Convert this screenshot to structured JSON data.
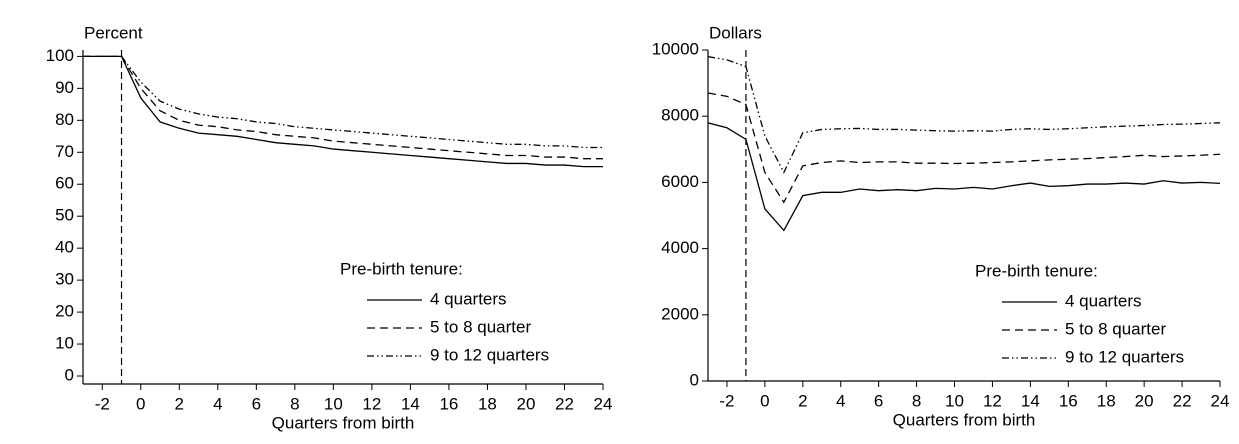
{
  "chart_data": [
    {
      "type": "line",
      "ylabel": "Percent",
      "xlabel": "Quarters from birth",
      "legend_title": "Pre-birth tenure:",
      "x": [
        -3,
        -2,
        -1,
        0,
        1,
        2,
        3,
        4,
        5,
        6,
        7,
        8,
        9,
        10,
        11,
        12,
        13,
        14,
        15,
        16,
        17,
        18,
        19,
        20,
        21,
        22,
        23,
        24
      ],
      "series": [
        {
          "name": "4 quarters",
          "color": "#000000",
          "dash": "none",
          "values": [
            100,
            100,
            100,
            87,
            79.5,
            77.5,
            76,
            75.5,
            75,
            74,
            73,
            72.5,
            72,
            71,
            70.5,
            70,
            69.5,
            69,
            68.5,
            68,
            67.5,
            67,
            66.5,
            66.5,
            66,
            66,
            65.5,
            65.5
          ]
        },
        {
          "name": "5 to 8 quarter",
          "color": "#000000",
          "dash": "8,5",
          "values": [
            100,
            100,
            100,
            90,
            83,
            80,
            78.5,
            78,
            77,
            76.5,
            75.5,
            75,
            74.5,
            73.5,
            73,
            72.5,
            72,
            71.5,
            71,
            70.5,
            70,
            69.5,
            69,
            69,
            68.5,
            68.5,
            68,
            68
          ]
        },
        {
          "name": "9 to 12 quarters",
          "color": "#000000",
          "dash": "7,3,1.5,3,1.5,3",
          "values": [
            100,
            100,
            100,
            92,
            86,
            83.5,
            82,
            81,
            80.5,
            79.5,
            79,
            78,
            77.5,
            77,
            76.5,
            76,
            75.5,
            75,
            74.5,
            74,
            73.5,
            73,
            72.5,
            72.5,
            72,
            72,
            71.5,
            71.5
          ]
        }
      ],
      "vline": -1,
      "xlim": [
        -3,
        24
      ],
      "xticks": [
        -2,
        0,
        2,
        4,
        6,
        8,
        10,
        12,
        14,
        16,
        18,
        20,
        22,
        24
      ],
      "ylim": [
        -2.5,
        102
      ],
      "yticks": [
        0,
        10,
        20,
        30,
        40,
        50,
        60,
        70,
        80,
        90,
        100
      ]
    },
    {
      "type": "line",
      "ylabel": "Dollars",
      "xlabel": "Quarters from birth",
      "legend_title": "Pre-birth tenure:",
      "x": [
        -3,
        -2,
        -1,
        0,
        1,
        2,
        3,
        4,
        5,
        6,
        7,
        8,
        9,
        10,
        11,
        12,
        13,
        14,
        15,
        16,
        17,
        18,
        19,
        20,
        21,
        22,
        23,
        24
      ],
      "series": [
        {
          "name": "4 quarters",
          "color": "#000000",
          "dash": "none",
          "values": [
            7800,
            7650,
            7300,
            5200,
            4550,
            5600,
            5700,
            5700,
            5800,
            5750,
            5780,
            5750,
            5820,
            5800,
            5850,
            5800,
            5900,
            5980,
            5880,
            5900,
            5950,
            5950,
            5980,
            5950,
            6050,
            5980,
            6000,
            5970
          ]
        },
        {
          "name": "5 to 8 quarter",
          "color": "#000000",
          "dash": "8,5",
          "values": [
            8700,
            8600,
            8350,
            6300,
            5400,
            6500,
            6600,
            6650,
            6600,
            6620,
            6620,
            6580,
            6580,
            6570,
            6580,
            6600,
            6620,
            6650,
            6680,
            6700,
            6720,
            6750,
            6780,
            6820,
            6780,
            6800,
            6820,
            6850
          ]
        },
        {
          "name": "9 to 12 quarters",
          "color": "#000000",
          "dash": "7,3,1.5,3,1.5,3",
          "values": [
            9800,
            9700,
            9500,
            7400,
            6300,
            7500,
            7600,
            7620,
            7630,
            7600,
            7600,
            7580,
            7560,
            7550,
            7560,
            7550,
            7600,
            7620,
            7600,
            7620,
            7650,
            7680,
            7700,
            7720,
            7750,
            7760,
            7780,
            7800
          ]
        }
      ],
      "vline": -1,
      "xlim": [
        -3,
        24
      ],
      "xticks": [
        -2,
        0,
        2,
        4,
        6,
        8,
        10,
        12,
        14,
        16,
        18,
        20,
        22,
        24
      ],
      "ylim": [
        0,
        10000
      ],
      "yticks": [
        0,
        2000,
        4000,
        6000,
        8000,
        10000
      ]
    }
  ]
}
